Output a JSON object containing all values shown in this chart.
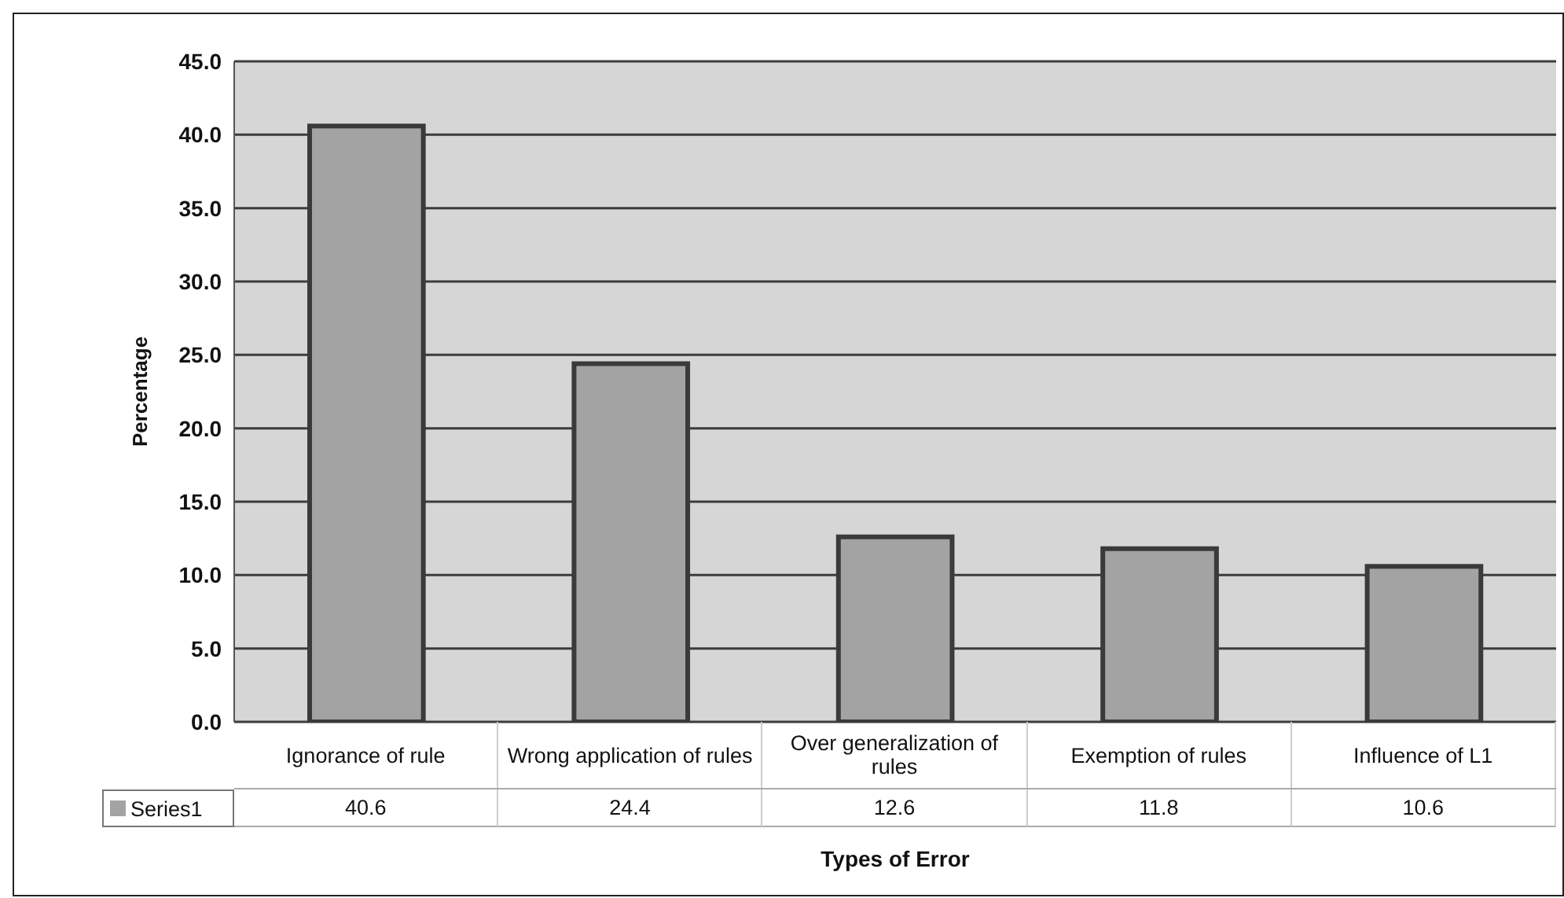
{
  "chart_data": {
    "type": "bar",
    "xlabel": "Types of Error",
    "ylabel": "Percentage",
    "categories": [
      "Ignorance of rule",
      "Wrong application of rules",
      "Over generalization of rules",
      "Exemption of rules",
      "Influence of L1"
    ],
    "series": [
      {
        "name": "Series1",
        "color": "#a3a3a3",
        "values": [
          40.6,
          24.4,
          12.6,
          11.8,
          10.6
        ]
      }
    ],
    "ylim": [
      0,
      45
    ],
    "yticks": [
      {
        "value": 0,
        "label": "0.0"
      },
      {
        "value": 5,
        "label": "5.0"
      },
      {
        "value": 10,
        "label": "10.0"
      },
      {
        "value": 15,
        "label": "15.0"
      },
      {
        "value": 20,
        "label": "20.0"
      },
      {
        "value": 25,
        "label": "25.0"
      },
      {
        "value": 30,
        "label": "30.0"
      },
      {
        "value": 35,
        "label": "35.0"
      },
      {
        "value": 40,
        "label": "40.0"
      },
      {
        "value": 45,
        "label": "45.0"
      }
    ],
    "grid": "y",
    "legend": "bottom left",
    "data_labels": true
  }
}
